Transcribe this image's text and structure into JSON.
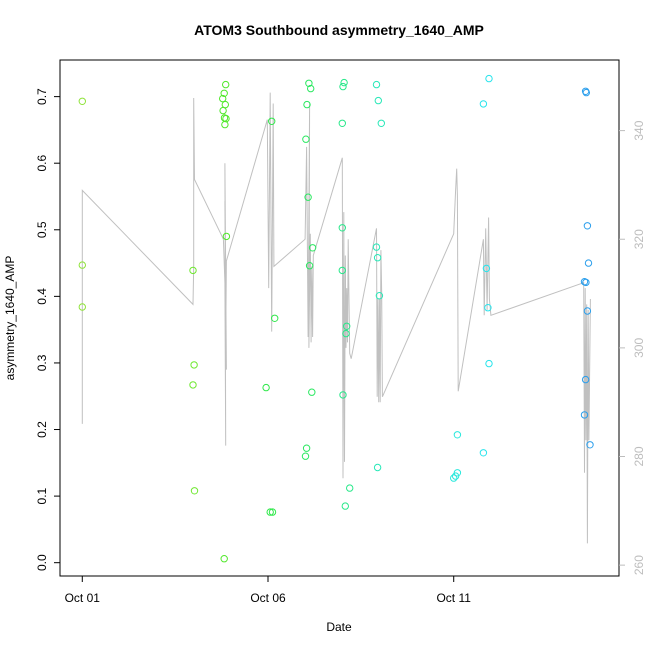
{
  "chart_data": {
    "type": "scatter",
    "title": "ATOM3 Southbound asymmetry_1640_AMP",
    "xlabel": "Date",
    "ylabel": "asymmetry_1640_AMP",
    "x_unit": "days since Oct 01",
    "x_ticks": [
      {
        "value": 0,
        "label": "Oct 01"
      },
      {
        "value": 5,
        "label": "Oct 06"
      },
      {
        "value": 10,
        "label": "Oct 11"
      }
    ],
    "xlim": [
      -0.6,
      14.45
    ],
    "ylim": [
      -0.02,
      0.755
    ],
    "y_ticks": [
      0.0,
      0.1,
      0.2,
      0.3,
      0.4,
      0.5,
      0.6,
      0.7
    ],
    "y_tick_labels": [
      "0.0",
      "0.1",
      "0.2",
      "0.3",
      "0.4",
      "0.5",
      "0.6",
      "0.7"
    ],
    "y2lim": [
      258,
      353
    ],
    "y2_ticks": [
      260,
      280,
      300,
      320,
      340
    ],
    "y2_tick_labels": [
      "260",
      "280",
      "300",
      "320",
      "340"
    ],
    "grid": false,
    "colors": {
      "line": "#c0c0c0",
      "axis": "#000000",
      "secondary_axis": "#bdbdbd"
    },
    "series": [
      {
        "kind": "points",
        "color_mode": "gradient-by-date",
        "points": [
          {
            "x": 0.0,
            "y": 0.693,
            "color": "#8fe33a"
          },
          {
            "x": 0.0,
            "y": 0.447,
            "color": "#8fe33a"
          },
          {
            "x": 0.0,
            "y": 0.384,
            "color": "#8fe33a"
          },
          {
            "x": 2.98,
            "y": 0.439,
            "color": "#6fe830"
          },
          {
            "x": 3.01,
            "y": 0.297,
            "color": "#6fe830"
          },
          {
            "x": 2.98,
            "y": 0.267,
            "color": "#6fe830"
          },
          {
            "x": 3.02,
            "y": 0.108,
            "color": "#6fe830"
          },
          {
            "x": 3.86,
            "y": 0.718,
            "color": "#50e82a"
          },
          {
            "x": 3.82,
            "y": 0.705,
            "color": "#50e82a"
          },
          {
            "x": 3.78,
            "y": 0.697,
            "color": "#50e82a"
          },
          {
            "x": 3.85,
            "y": 0.688,
            "color": "#50e82a"
          },
          {
            "x": 3.79,
            "y": 0.679,
            "color": "#50e82a"
          },
          {
            "x": 3.83,
            "y": 0.668,
            "color": "#50e82a"
          },
          {
            "x": 3.87,
            "y": 0.667,
            "color": "#50e82a"
          },
          {
            "x": 3.84,
            "y": 0.658,
            "color": "#50e82a"
          },
          {
            "x": 3.88,
            "y": 0.49,
            "color": "#50e82a"
          },
          {
            "x": 3.82,
            "y": 0.006,
            "color": "#50e82a"
          },
          {
            "x": 4.95,
            "y": 0.263,
            "color": "#2fe84a"
          },
          {
            "x": 5.1,
            "y": 0.663,
            "color": "#2fe84a"
          },
          {
            "x": 5.18,
            "y": 0.367,
            "color": "#2fe84a"
          },
          {
            "x": 5.06,
            "y": 0.076,
            "color": "#2fe84a"
          },
          {
            "x": 5.12,
            "y": 0.076,
            "color": "#2fe84a"
          },
          {
            "x": 6.1,
            "y": 0.72,
            "color": "#2ae860"
          },
          {
            "x": 6.15,
            "y": 0.712,
            "color": "#2ae860"
          },
          {
            "x": 6.05,
            "y": 0.688,
            "color": "#2ae860"
          },
          {
            "x": 6.02,
            "y": 0.636,
            "color": "#2ae860"
          },
          {
            "x": 6.08,
            "y": 0.549,
            "color": "#2ae860"
          },
          {
            "x": 6.2,
            "y": 0.473,
            "color": "#2ae860"
          },
          {
            "x": 6.12,
            "y": 0.446,
            "color": "#2ae860"
          },
          {
            "x": 6.18,
            "y": 0.256,
            "color": "#2ae860"
          },
          {
            "x": 6.04,
            "y": 0.172,
            "color": "#2ae860"
          },
          {
            "x": 6.01,
            "y": 0.16,
            "color": "#2ae860"
          },
          {
            "x": 7.05,
            "y": 0.721,
            "color": "#28e88a"
          },
          {
            "x": 7.02,
            "y": 0.715,
            "color": "#28e88a"
          },
          {
            "x": 7.0,
            "y": 0.66,
            "color": "#28e88a"
          },
          {
            "x": 7.0,
            "y": 0.503,
            "color": "#28e88a"
          },
          {
            "x": 7.0,
            "y": 0.439,
            "color": "#28e88a"
          },
          {
            "x": 7.12,
            "y": 0.355,
            "color": "#28e88a"
          },
          {
            "x": 7.1,
            "y": 0.344,
            "color": "#28e88a"
          },
          {
            "x": 7.02,
            "y": 0.252,
            "color": "#28e88a"
          },
          {
            "x": 7.2,
            "y": 0.112,
            "color": "#28e88a"
          },
          {
            "x": 7.08,
            "y": 0.085,
            "color": "#28e88a"
          },
          {
            "x": 7.92,
            "y": 0.718,
            "color": "#28e8b8"
          },
          {
            "x": 7.97,
            "y": 0.694,
            "color": "#28e8b8"
          },
          {
            "x": 8.05,
            "y": 0.66,
            "color": "#28e8b8"
          },
          {
            "x": 7.92,
            "y": 0.474,
            "color": "#28e8b8"
          },
          {
            "x": 7.95,
            "y": 0.458,
            "color": "#28e8b8"
          },
          {
            "x": 8.0,
            "y": 0.401,
            "color": "#28e8b8"
          },
          {
            "x": 7.95,
            "y": 0.143,
            "color": "#28e8b8"
          },
          {
            "x": 10.1,
            "y": 0.192,
            "color": "#28e8dc"
          },
          {
            "x": 10.1,
            "y": 0.135,
            "color": "#28e8dc"
          },
          {
            "x": 10.05,
            "y": 0.13,
            "color": "#28e8dc"
          },
          {
            "x": 10.0,
            "y": 0.127,
            "color": "#28e8dc"
          },
          {
            "x": 10.95,
            "y": 0.727,
            "color": "#28e4ec"
          },
          {
            "x": 10.8,
            "y": 0.689,
            "color": "#28e4ec"
          },
          {
            "x": 10.88,
            "y": 0.442,
            "color": "#28e4ec"
          },
          {
            "x": 10.92,
            "y": 0.383,
            "color": "#28e4ec"
          },
          {
            "x": 10.95,
            "y": 0.299,
            "color": "#28e4ec"
          },
          {
            "x": 10.8,
            "y": 0.165,
            "color": "#28e4ec"
          },
          {
            "x": 13.55,
            "y": 0.708,
            "color": "#2a9eec"
          },
          {
            "x": 13.57,
            "y": 0.706,
            "color": "#2a9eec"
          },
          {
            "x": 13.6,
            "y": 0.506,
            "color": "#2a9eec"
          },
          {
            "x": 13.63,
            "y": 0.45,
            "color": "#2a9eec"
          },
          {
            "x": 13.52,
            "y": 0.422,
            "color": "#2a9eec"
          },
          {
            "x": 13.56,
            "y": 0.421,
            "color": "#2a9eec"
          },
          {
            "x": 13.6,
            "y": 0.378,
            "color": "#2a9eec"
          },
          {
            "x": 13.55,
            "y": 0.275,
            "color": "#2a9eec"
          },
          {
            "x": 13.52,
            "y": 0.222,
            "color": "#2a9eec"
          },
          {
            "x": 13.67,
            "y": 0.177,
            "color": "#2a9eec"
          }
        ]
      },
      {
        "kind": "line",
        "axis": "right",
        "color": "#c0c0c0",
        "points": [
          [
            0.0,
            286
          ],
          [
            0.0,
            329
          ],
          [
            2.98,
            308
          ],
          [
            3.0,
            315
          ],
          [
            3.0,
            346
          ],
          [
            3.02,
            331
          ],
          [
            3.8,
            320
          ],
          [
            3.84,
            312
          ],
          [
            3.86,
            282
          ],
          [
            3.84,
            334
          ],
          [
            3.88,
            296
          ],
          [
            3.86,
            312
          ],
          [
            3.84,
            327
          ],
          [
            3.86,
            301
          ],
          [
            3.88,
            316
          ],
          [
            4.98,
            342
          ],
          [
            5.02,
            311
          ],
          [
            5.06,
            347
          ],
          [
            5.1,
            303
          ],
          [
            5.14,
            345
          ],
          [
            5.16,
            315
          ],
          [
            6.0,
            320
          ],
          [
            6.04,
            337
          ],
          [
            6.08,
            302
          ],
          [
            6.12,
            345
          ],
          [
            6.1,
            300
          ],
          [
            6.14,
            321
          ],
          [
            6.16,
            301
          ],
          [
            6.18,
            315
          ],
          [
            6.2,
            302
          ],
          [
            6.22,
            317
          ],
          [
            7.0,
            335
          ],
          [
            7.02,
            276
          ],
          [
            7.04,
            325
          ],
          [
            7.06,
            279
          ],
          [
            7.08,
            317
          ],
          [
            7.1,
            300
          ],
          [
            7.12,
            311
          ],
          [
            7.14,
            301
          ],
          [
            7.16,
            320
          ],
          [
            7.2,
            299
          ],
          [
            7.24,
            298
          ],
          [
            7.92,
            322
          ],
          [
            7.94,
            291
          ],
          [
            7.96,
            309
          ],
          [
            7.98,
            290
          ],
          [
            8.0,
            309
          ],
          [
            8.02,
            290
          ],
          [
            8.04,
            318
          ],
          [
            8.06,
            310
          ],
          [
            8.08,
            291
          ],
          [
            10.0,
            321
          ],
          [
            10.05,
            329
          ],
          [
            10.08,
            333
          ],
          [
            10.1,
            328
          ],
          [
            10.12,
            292
          ],
          [
            10.8,
            320
          ],
          [
            10.82,
            306
          ],
          [
            10.86,
            322
          ],
          [
            10.9,
            307
          ],
          [
            10.94,
            324
          ],
          [
            10.96,
            309
          ],
          [
            11.0,
            306
          ],
          [
            13.5,
            312
          ],
          [
            13.52,
            277
          ],
          [
            13.54,
            311
          ],
          [
            13.56,
            283
          ],
          [
            13.58,
            308
          ],
          [
            13.6,
            264
          ],
          [
            13.62,
            307
          ],
          [
            13.64,
            283
          ],
          [
            13.68,
            309
          ]
        ]
      }
    ]
  }
}
